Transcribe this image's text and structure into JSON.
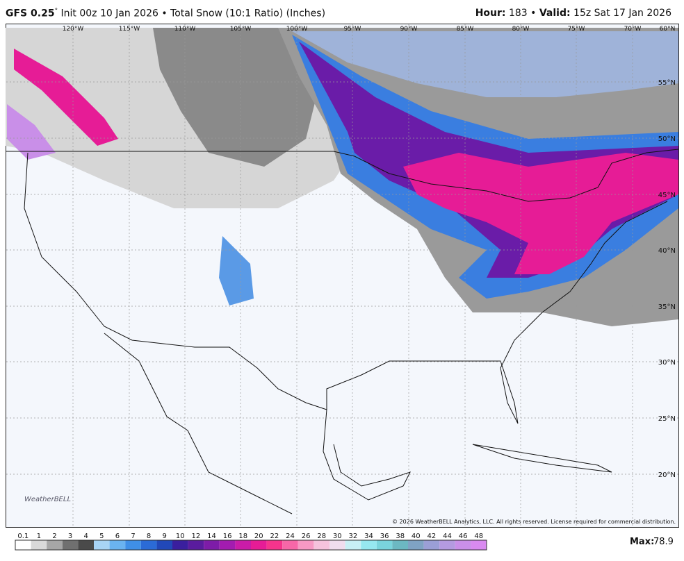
{
  "header": {
    "model": "GFS 0.25",
    "model_degree": "°",
    "description": "Init 00z 10 Jan 2026 • Total Snow (10:1 Ratio) (Inches)",
    "hour_label": "Hour:",
    "hour": "183",
    "separator": "•",
    "valid_label": "Valid:",
    "valid": "15z Sat 17 Jan 2026"
  },
  "map": {
    "longitude_labels": [
      "120°W",
      "115°W",
      "110°W",
      "105°W",
      "100°W",
      "95°W",
      "90°W",
      "85°W",
      "80°W",
      "75°W",
      "70°W",
      "60°N"
    ],
    "latitude_labels": [
      "55°N",
      "50°N",
      "45°N",
      "40°N",
      "35°N",
      "30°N",
      "25°N",
      "20°N"
    ],
    "copyright": "© 2026 WeatherBELL Analytics, LLC. All rights reserved. License required for commercial distribution.",
    "logo": "WeatherBELL"
  },
  "colorbar": {
    "labels": [
      0.1,
      1,
      2,
      3,
      4,
      5,
      6,
      7,
      8,
      9,
      10,
      12,
      14,
      16,
      18,
      20,
      22,
      24,
      26,
      28,
      30,
      32,
      34,
      36,
      38,
      40,
      42,
      44,
      46,
      48
    ],
    "colors": [
      "#ffffff",
      "#d9d9d9",
      "#a6a6a6",
      "#707070",
      "#4a4a4a",
      "#a8d4f5",
      "#6ab3f0",
      "#3f8fe6",
      "#2b6bd6",
      "#2148b8",
      "#3a1f9e",
      "#5a1c9e",
      "#7d1ca8",
      "#a31cb0",
      "#c91ca8",
      "#e61c96",
      "#f5348c",
      "#f767a8",
      "#f799c4",
      "#f5c2dc",
      "#f0ddee",
      "#c8f0f5",
      "#96e8f0",
      "#7ad4dc",
      "#6cb8c2",
      "#7fa3c4",
      "#9b9fd6",
      "#b49ae0",
      "#c98fe8",
      "#d98af0"
    ],
    "max_label": "Max:",
    "max": 78.9
  }
}
